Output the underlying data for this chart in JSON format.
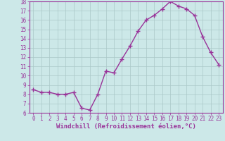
{
  "x": [
    0,
    1,
    2,
    3,
    4,
    5,
    6,
    7,
    8,
    9,
    10,
    11,
    12,
    13,
    14,
    15,
    16,
    17,
    18,
    19,
    20,
    21,
    22,
    23
  ],
  "y": [
    8.5,
    8.2,
    8.2,
    8.0,
    8.0,
    8.2,
    6.5,
    6.3,
    8.0,
    10.5,
    10.3,
    11.8,
    13.2,
    14.8,
    16.0,
    16.5,
    17.2,
    18.0,
    17.5,
    17.2,
    16.5,
    14.2,
    12.5,
    11.2
  ],
  "line_color": "#993399",
  "marker": "+",
  "marker_size": 4,
  "bg_color": "#cce8e8",
  "grid_color": "#aac8c8",
  "xlabel": "Windchill (Refroidissement éolien,°C)",
  "ylim": [
    6,
    18
  ],
  "xlim": [
    -0.5,
    23.5
  ],
  "yticks": [
    6,
    7,
    8,
    9,
    10,
    11,
    12,
    13,
    14,
    15,
    16,
    17,
    18
  ],
  "xticks": [
    0,
    1,
    2,
    3,
    4,
    5,
    6,
    7,
    8,
    9,
    10,
    11,
    12,
    13,
    14,
    15,
    16,
    17,
    18,
    19,
    20,
    21,
    22,
    23
  ],
  "tick_color": "#993399",
  "label_color": "#993399",
  "axis_color": "#993399",
  "xlabel_fontsize": 6.5,
  "tick_fontsize": 5.5,
  "line_width": 1.0
}
